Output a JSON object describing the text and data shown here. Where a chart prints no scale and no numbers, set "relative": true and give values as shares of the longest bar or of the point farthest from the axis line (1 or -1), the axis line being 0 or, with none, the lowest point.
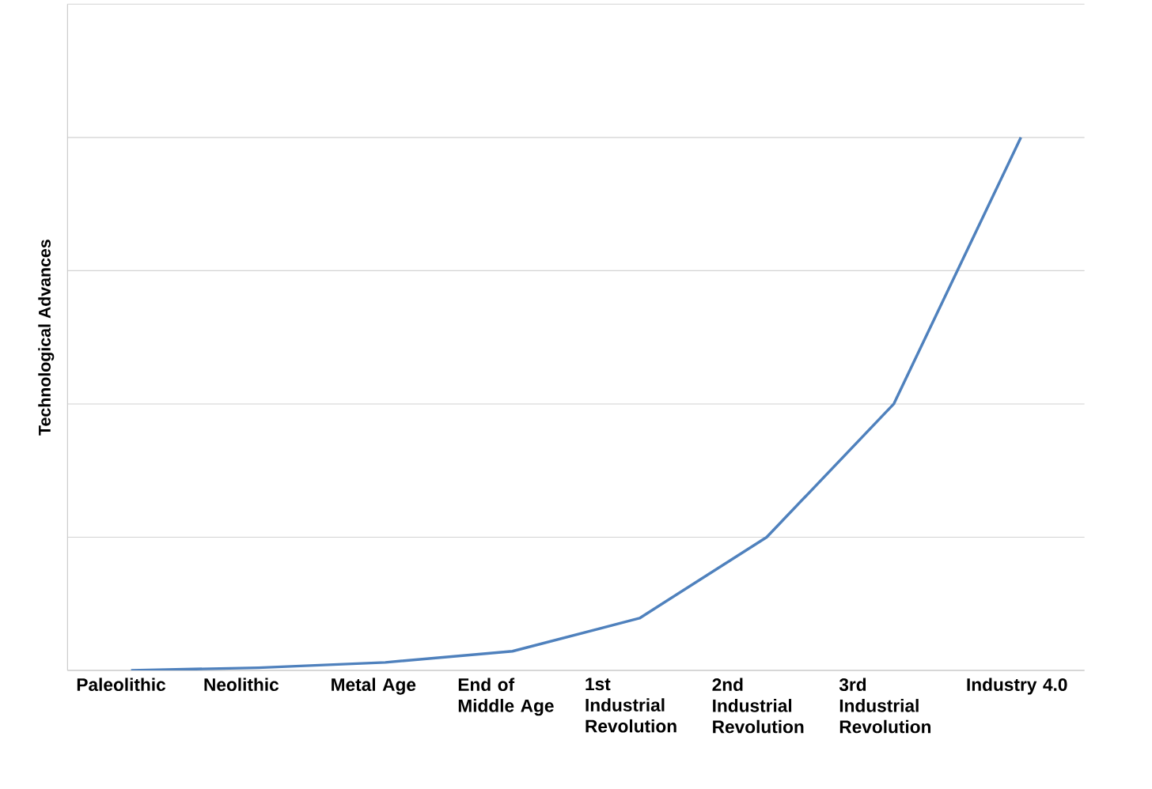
{
  "chart_data": {
    "type": "line",
    "ylabel": "Technological Advances",
    "categories": [
      "Paleolithic",
      "Neolithic",
      "Metal Age",
      "End of Middle Age",
      "1st Industrial Revolution",
      "2nd Industrial Revolution",
      "3rd Industrial Revolution",
      "Industry 4.0"
    ],
    "series": [
      {
        "color": "#4f81bd",
        "values": [
          0,
          0.005,
          0.015,
          0.036,
          0.098,
          0.25,
          0.5,
          1
        ]
      }
    ],
    "relative": true,
    "grid": "y",
    "marker": "none",
    "line_style": "solid"
  }
}
